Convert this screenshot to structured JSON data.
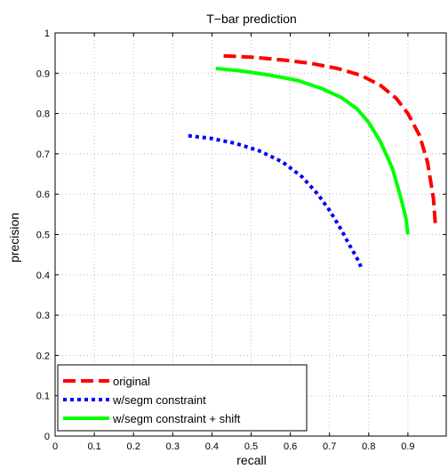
{
  "chart_data": {
    "type": "line",
    "title": "T−bar prediction",
    "xlabel": "recall",
    "ylabel": "precision",
    "xlim": [
      0,
      1
    ],
    "ylim": [
      0,
      1
    ],
    "xticks": [
      "0",
      "0.1",
      "0.2",
      "0.3",
      "0.4",
      "0.5",
      "0.6",
      "0.7",
      "0.8",
      "0.9"
    ],
    "yticks": [
      "0",
      "0.1",
      "0.2",
      "0.3",
      "0.4",
      "0.5",
      "0.6",
      "0.7",
      "0.8",
      "0.9",
      "1"
    ],
    "grid": true,
    "legend_position": "bottom-left",
    "series": [
      {
        "name": "original",
        "color": "#ff0000",
        "style": "dashed",
        "x": [
          0.43,
          0.5,
          0.58,
          0.65,
          0.72,
          0.78,
          0.83,
          0.87,
          0.9,
          0.93,
          0.95,
          0.965,
          0.97
        ],
        "y": [
          0.943,
          0.94,
          0.933,
          0.925,
          0.912,
          0.895,
          0.87,
          0.838,
          0.8,
          0.745,
          0.68,
          0.59,
          0.525
        ]
      },
      {
        "name": "w/segm constraint",
        "color": "#0000ff",
        "style": "dotted",
        "x": [
          0.34,
          0.4,
          0.46,
          0.52,
          0.58,
          0.63,
          0.67,
          0.7,
          0.73,
          0.75,
          0.765,
          0.775,
          0.78
        ],
        "y": [
          0.745,
          0.738,
          0.726,
          0.708,
          0.68,
          0.643,
          0.6,
          0.56,
          0.512,
          0.475,
          0.45,
          0.432,
          0.42
        ]
      },
      {
        "name": "w/segm constraint + shift",
        "color": "#00ff00",
        "style": "solid",
        "x": [
          0.41,
          0.48,
          0.55,
          0.62,
          0.68,
          0.73,
          0.77,
          0.8,
          0.83,
          0.86,
          0.88,
          0.895,
          0.9
        ],
        "y": [
          0.912,
          0.905,
          0.895,
          0.882,
          0.862,
          0.84,
          0.812,
          0.778,
          0.73,
          0.665,
          0.598,
          0.54,
          0.5
        ]
      }
    ]
  }
}
